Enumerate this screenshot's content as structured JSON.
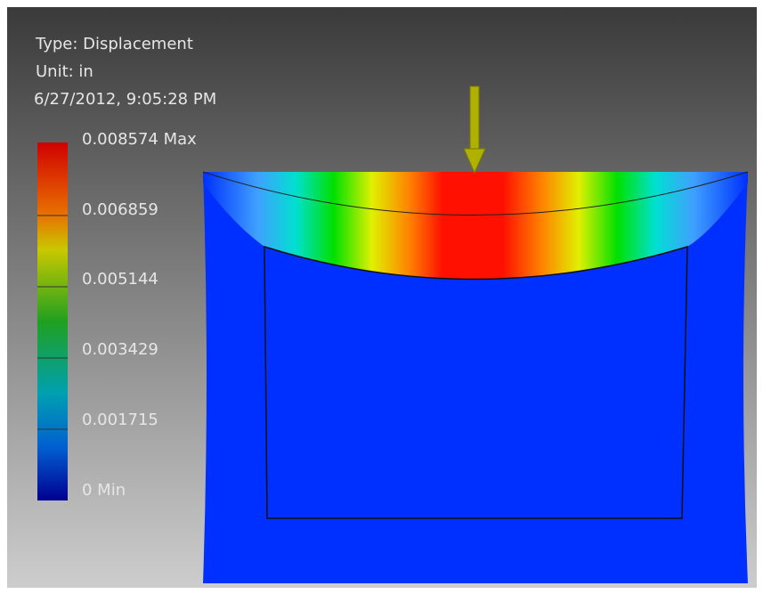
{
  "header": {
    "type": "Type: Displacement",
    "unit": "Unit: in",
    "timestamp": "6/27/2012, 9:05:28 PM"
  },
  "legend": {
    "labels": [
      "0.008574 Max",
      "0.006859",
      "0.005144",
      "0.003429",
      "0.001715",
      "0 Min"
    ]
  }
}
